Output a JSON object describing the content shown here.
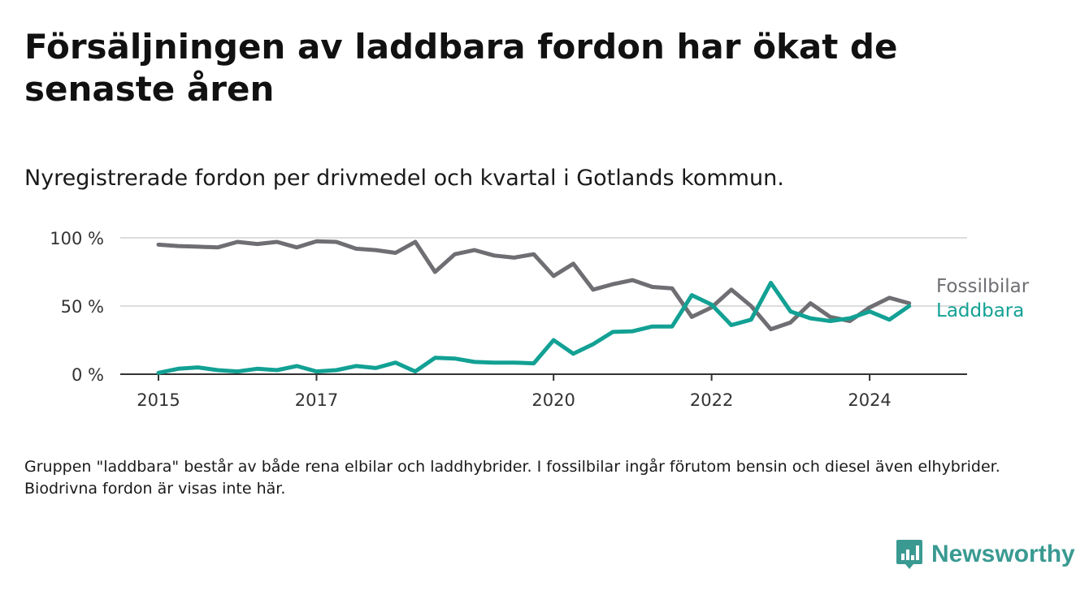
{
  "title": "Försäljningen av laddbara fordon har ökat de senaste åren",
  "subtitle": "Nyregistrerade fordon per drivmedel och kvartal i Gotlands kommun.",
  "footnote": "Gruppen \"laddbara\" består av både rena elbilar och laddhybrider. I fossilbilar ingår förutom bensin och diesel även elhybrider. Biodrivna fordon är visas inte här.",
  "brand": {
    "name": "Newsworthy",
    "logo_icon": "bar-chart-icon",
    "color": "#3a9a92"
  },
  "chart_data": {
    "type": "line",
    "x_unit": "quarter",
    "x_start": "2015 Q1",
    "xlim": [
      2015.0,
      2024.75
    ],
    "x_ticks": [
      2015,
      2017,
      2020,
      2022,
      2024
    ],
    "x_tick_labels": [
      "2015",
      "2017",
      "2020",
      "2022",
      "2024"
    ],
    "ylim": [
      0,
      100
    ],
    "y_ticks": [
      0,
      50,
      100
    ],
    "y_tick_labels": [
      "0 %",
      "50 %",
      "100 %"
    ],
    "grid": true,
    "legend": "end-of-line labels",
    "series": [
      {
        "name": "Fossilbilar",
        "color": "#6e6e73",
        "values": [
          95,
          94,
          93.5,
          93,
          97,
          95.5,
          97,
          93,
          97.5,
          97,
          92,
          91,
          89,
          97,
          75,
          88,
          91,
          87,
          85.5,
          88,
          72,
          81,
          62,
          66,
          69,
          64,
          63,
          42,
          49,
          62,
          50,
          33,
          38,
          52,
          42,
          39,
          49,
          56,
          52
        ]
      },
      {
        "name": "Laddbara",
        "color": "#12a194",
        "values": [
          1,
          4,
          5,
          3,
          2,
          4,
          3,
          6,
          2,
          3,
          6,
          4.5,
          8.5,
          2,
          12,
          11.5,
          9,
          8.5,
          8.5,
          8,
          25,
          15,
          22,
          31,
          31.5,
          35,
          35,
          58,
          51,
          36,
          40,
          67,
          46,
          41,
          39,
          41,
          46,
          40,
          50
        ]
      }
    ]
  }
}
